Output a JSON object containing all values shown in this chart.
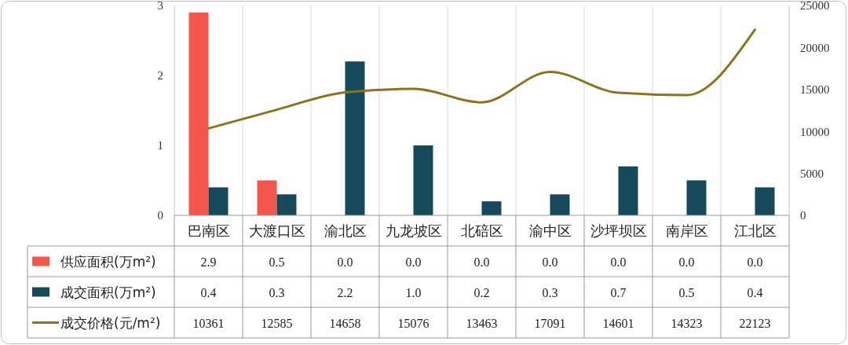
{
  "chart_data": {
    "type": "bar",
    "categories": [
      "巴南区",
      "大渡口区",
      "渝北区",
      "九龙坡区",
      "北碚区",
      "渝中区",
      "沙坪坝区",
      "南岸区",
      "江北区"
    ],
    "series": [
      {
        "name": "供应面积(万m²)",
        "color": "#f4574b",
        "values": [
          2.9,
          0.5,
          0.0,
          0.0,
          0.0,
          0.0,
          0.0,
          0.0,
          0.0
        ],
        "value_labels": [
          "2.9",
          "0.5",
          "0.0",
          "0.0",
          "0.0",
          "0.0",
          "0.0",
          "0.0",
          "0.0"
        ]
      },
      {
        "name": "成交面积(万m²)",
        "color": "#164a5b",
        "values": [
          0.4,
          0.3,
          2.2,
          1.0,
          0.2,
          0.3,
          0.7,
          0.5,
          0.4
        ],
        "value_labels": [
          "0.4",
          "0.3",
          "2.2",
          "1.0",
          "0.2",
          "0.3",
          "0.7",
          "0.5",
          "0.4"
        ]
      },
      {
        "name": "成交价格(元/m²)",
        "type": "line",
        "axis": "y2",
        "color": "#8b7322",
        "values": [
          10361,
          12585,
          14658,
          15076,
          13463,
          17091,
          14601,
          14323,
          22123
        ],
        "value_labels": [
          "10361",
          "12585",
          "14658",
          "15076",
          "13463",
          "17091",
          "14601",
          "14323",
          "22123"
        ]
      }
    ],
    "ylim": [
      0,
      3
    ],
    "yticks": [
      0,
      1,
      2,
      3
    ],
    "y2lim": [
      0,
      25000
    ],
    "y2ticks": [
      0,
      5000,
      10000,
      15000,
      20000,
      25000
    ],
    "grid": "x",
    "legend": "bottom"
  }
}
